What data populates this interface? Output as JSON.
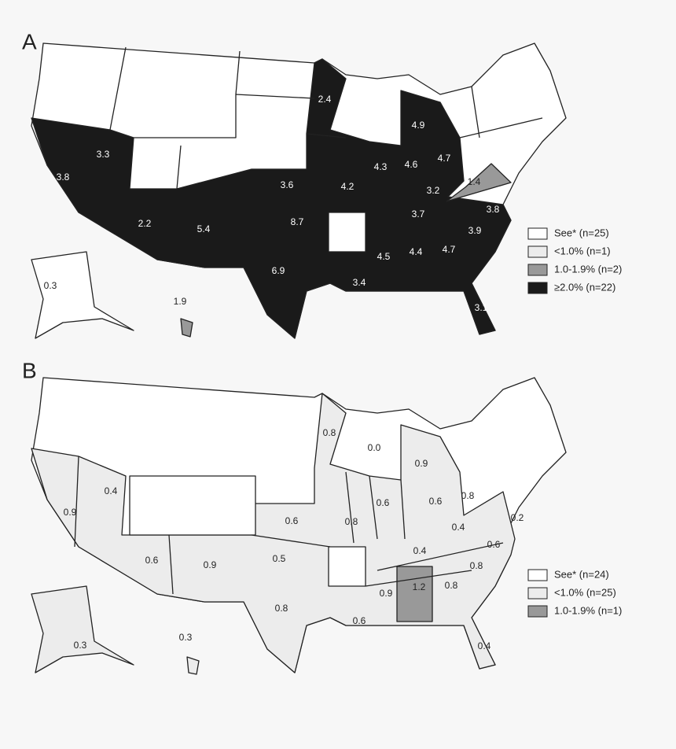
{
  "panels": [
    {
      "label": "A",
      "legend": [
        "See* (n=25)",
        "<1.0% (n=1)",
        "1.0-1.9% (n=2)",
        "≥2.0% (n=22)"
      ],
      "state_labels": [
        "2.4",
        "4.9",
        "3.3",
        "4.3",
        "4.6",
        "4.7",
        "3.8",
        "3.6",
        "4.2",
        "3.2",
        "1.4",
        "3.7",
        "3.8",
        "2.2",
        "5.4",
        "8.7",
        "3.9",
        "4.5",
        "4.4",
        "4.7",
        "0.3",
        "6.9",
        "1.9",
        "3.4",
        "3.1"
      ]
    },
    {
      "label": "B",
      "legend": [
        "See* (n=24)",
        "<1.0% (n=25)",
        "1.0-1.9% (n=1)"
      ],
      "state_labels": [
        "0.8",
        "0.0",
        "0.9",
        "0.4",
        "0.6",
        "0.6",
        "0.8",
        "0.9",
        "0.6",
        "0.8",
        "0.4",
        "0.2",
        "0.6",
        "0.9",
        "0.5",
        "0.4",
        "0.6",
        "0.8",
        "1.2",
        "0.8",
        "0.9",
        "0.8",
        "0.6",
        "0.3",
        "0.3",
        "0.4"
      ]
    }
  ]
}
